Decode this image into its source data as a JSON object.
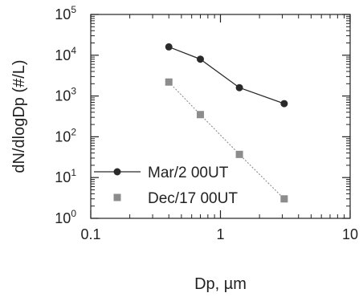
{
  "chart_data": {
    "type": "line",
    "xlabel": "Dp, µm",
    "ylabel": "dN/dlogDp (#/L)",
    "x_scale": "log",
    "y_scale": "log",
    "xlim": [
      0.1,
      10
    ],
    "ylim": [
      1,
      100000
    ],
    "grid": false,
    "legend_position": "bottom-left",
    "x_ticks": [
      {
        "value": 0.1,
        "label": "0.1"
      },
      {
        "value": 1,
        "label": "1"
      },
      {
        "value": 10,
        "label": "10"
      }
    ],
    "y_ticks": [
      {
        "value": 1,
        "base": "10",
        "exp": "0"
      },
      {
        "value": 10,
        "base": "10",
        "exp": "1"
      },
      {
        "value": 100,
        "base": "10",
        "exp": "2"
      },
      {
        "value": 1000,
        "base": "10",
        "exp": "3"
      },
      {
        "value": 10000,
        "base": "10",
        "exp": "4"
      },
      {
        "value": 100000,
        "base": "10",
        "exp": "5"
      }
    ],
    "series": [
      {
        "name": "Mar/2 00UT",
        "color": "#2a2a2a",
        "marker": "circle",
        "x": [
          0.4,
          0.7,
          1.4,
          3.1
        ],
        "y": [
          16000,
          8000,
          1600,
          650
        ]
      },
      {
        "name": "Dec/17 00UT",
        "color": "#8c8c8c",
        "marker": "square",
        "x": [
          0.4,
          0.7,
          1.4,
          3.1
        ],
        "y": [
          2200,
          350,
          37,
          3
        ]
      }
    ]
  }
}
